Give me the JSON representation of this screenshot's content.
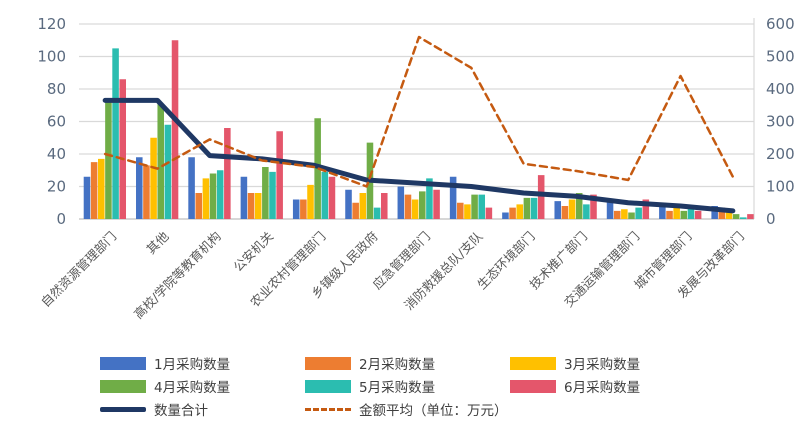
{
  "chart_data": {
    "type": "bar",
    "subtype": "grouped-bar-with-lines",
    "title": "",
    "categories": [
      "自然资源管理部门",
      "其他",
      "高校/学院等教育机构",
      "公安机关",
      "农业农村管理部门",
      "乡镇级人民政府",
      "应急管理部门",
      "消防救援总队/支队",
      "生态环境部门",
      "技术推广部门",
      "交通运输管理部门",
      "城市管理部门",
      "发展与改革部门"
    ],
    "left_axis": {
      "min": 0,
      "max": 120,
      "ticks": [
        0,
        20,
        40,
        60,
        80,
        100,
        120
      ]
    },
    "right_axis": {
      "min": 0,
      "max": 600,
      "ticks": [
        0,
        100,
        200,
        300,
        400,
        500,
        600
      ]
    },
    "grid": true,
    "legend_position": "bottom",
    "series": [
      {
        "name": "1月采购数量",
        "color": "#4472c4",
        "axis": "left",
        "values": [
          26,
          38,
          38,
          26,
          12,
          18,
          20,
          26,
          4,
          11,
          11,
          10,
          8
        ]
      },
      {
        "name": "2月采购数量",
        "color": "#ed7d31",
        "axis": "left",
        "values": [
          35,
          33,
          16,
          16,
          12,
          10,
          15,
          10,
          7,
          8,
          5,
          5,
          7
        ]
      },
      {
        "name": "3月采购数量",
        "color": "#ffc000",
        "axis": "left",
        "values": [
          37,
          50,
          25,
          16,
          21,
          16,
          12,
          9,
          9,
          12,
          6,
          7,
          6
        ]
      },
      {
        "name": "4月采购数量",
        "color": "#70ad47",
        "axis": "left",
        "values": [
          73,
          71,
          28,
          32,
          62,
          47,
          17,
          15,
          13,
          16,
          4,
          5,
          3
        ]
      },
      {
        "name": "5月采购数量",
        "color": "#2bbdb0",
        "axis": "left",
        "values": [
          105,
          58,
          30,
          29,
          29,
          7,
          25,
          15,
          13,
          9,
          7,
          7,
          1
        ]
      },
      {
        "name": "6月采购数量",
        "color": "#e4566b",
        "axis": "left",
        "values": [
          86,
          110,
          56,
          54,
          26,
          16,
          18,
          7,
          27,
          15,
          12,
          5,
          3
        ]
      }
    ],
    "lines": [
      {
        "name": "数量合计",
        "color": "#1f3864",
        "style": "solid",
        "axis": "left",
        "values": [
          73,
          73,
          39,
          37,
          33,
          24,
          22,
          20,
          16,
          14,
          10,
          8,
          5
        ]
      },
      {
        "name": "金额平均（单位：万元）",
        "color": "#c55a11",
        "style": "dashed",
        "axis": "right",
        "values": [
          200,
          155,
          245,
          180,
          160,
          100,
          560,
          465,
          170,
          148,
          120,
          440,
          130
        ]
      }
    ],
    "colors": {
      "gridline": "#d9d9d9",
      "baseline": "#bfbfbf",
      "axis_text": "#5a6a7f",
      "category_text": "#595959"
    }
  }
}
